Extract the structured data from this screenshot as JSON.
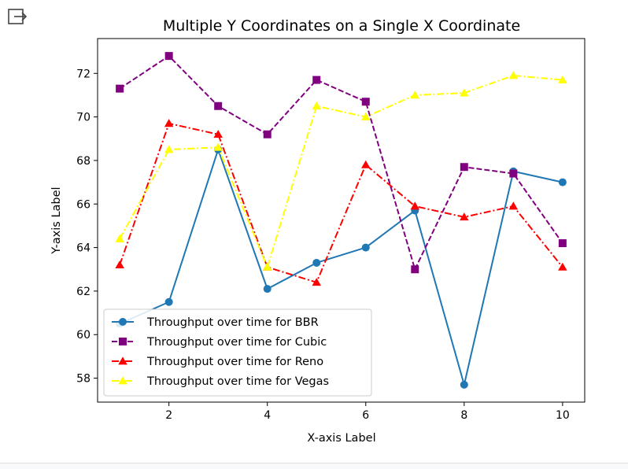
{
  "toolbar": {
    "output_icon": "output-exit-icon"
  },
  "chart_data": {
    "type": "line",
    "title": "Multiple Y Coordinates on a Single X Coordinate",
    "xlabel": "X-axis Label",
    "ylabel": "Y-axis Label",
    "x": [
      1,
      2,
      3,
      4,
      5,
      6,
      7,
      8,
      9,
      10
    ],
    "xlim": [
      0.55,
      10.45
    ],
    "ylim": [
      56.9,
      73.6
    ],
    "xticks": [
      2,
      4,
      6,
      8,
      10
    ],
    "yticks": [
      58,
      60,
      62,
      64,
      66,
      68,
      70,
      72
    ],
    "grid": false,
    "legend_position": "lower-left",
    "series": [
      {
        "name": "Throughput over time for BBR",
        "color": "#1f77b4",
        "linestyle": "solid",
        "marker": "circle",
        "values": [
          60.5,
          61.5,
          68.5,
          62.1,
          63.3,
          64.0,
          65.7,
          57.7,
          67.5,
          67.0
        ]
      },
      {
        "name": "Throughput over time for Cubic",
        "color": "#800080",
        "linestyle": "dashed",
        "marker": "square",
        "values": [
          71.3,
          72.8,
          70.5,
          69.2,
          71.7,
          70.7,
          63.0,
          67.7,
          67.4,
          64.2
        ]
      },
      {
        "name": "Throughput over time for Reno",
        "color": "#ff0000",
        "linestyle": "dashdot",
        "marker": "triangle",
        "values": [
          63.2,
          69.7,
          69.2,
          63.1,
          62.4,
          67.8,
          65.9,
          65.4,
          65.9,
          63.1
        ]
      },
      {
        "name": "Throughput over time for Vegas",
        "color": "#ffff00",
        "linestyle": "dashdot",
        "marker": "triangle",
        "values": [
          64.4,
          68.5,
          68.6,
          63.1,
          70.5,
          70.0,
          71.0,
          71.1,
          71.9,
          71.7
        ]
      }
    ]
  }
}
